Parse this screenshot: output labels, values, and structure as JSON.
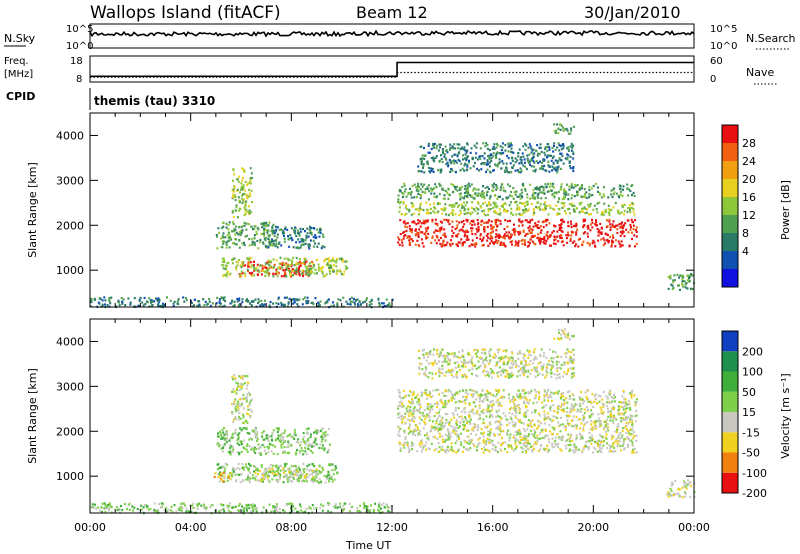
{
  "header": {
    "title": "Wallops Island (fitACF)",
    "beam": "Beam 12",
    "date": "30/Jan/2010"
  },
  "strips": {
    "nsky_label": "N.Sky",
    "nsearch_label": "N.Search",
    "freq_label": "Freq.",
    "freq_unit": "[MHz]",
    "nave_label": "Nave",
    "cpid_label": "CPID",
    "cpid_value": "themis (tau) 3310",
    "noise_ticks_left": [
      "10^5",
      "10^0"
    ],
    "noise_ticks_right": [
      "10^5",
      "10^0"
    ],
    "freq_ticks": [
      "18",
      "8"
    ],
    "nave_ticks": [
      "60",
      "0"
    ],
    "freq_series": {
      "x_hours": [
        0,
        12.2,
        12.2,
        24
      ],
      "mhz": [
        10.2,
        10.2,
        15.5,
        15.5
      ]
    },
    "nave_series": {
      "x_hours": [
        0,
        12.2,
        12.2,
        24
      ],
      "count": [
        11,
        11,
        22,
        22
      ]
    }
  },
  "chart_data": [
    {
      "type": "heatmap",
      "panel": "power",
      "ylabel": "Slant Range [km]",
      "xlabel": "Time UT",
      "xlim_hours": [
        0,
        24
      ],
      "ylim_km": [
        180,
        4500
      ],
      "yticks": [
        "1000",
        "2000",
        "3000",
        "4000"
      ],
      "xticks": [
        "00:00",
        "04:00",
        "08:00",
        "12:00",
        "16:00",
        "20:00",
        "00:00"
      ],
      "colorbar": {
        "label": "Power [dB]",
        "ticks": [
          "4",
          "8",
          "12",
          "16",
          "20",
          "24",
          "28"
        ],
        "colors": [
          "#1010e0",
          "#1050b0",
          "#2a7a68",
          "#4fa050",
          "#8ec83a",
          "#e8d020",
          "#f0a010",
          "#f06010",
          "#e81010"
        ]
      },
      "regions": [
        {
          "t0": 5.9,
          "t1": 8.8,
          "r0": 880,
          "r1": 1220,
          "level": "28"
        },
        {
          "t0": 5.2,
          "t1": 10.2,
          "r0": 880,
          "r1": 1300,
          "level": "12"
        },
        {
          "t0": 5.0,
          "t1": 7.3,
          "r0": 1500,
          "r1": 2100,
          "level": "8"
        },
        {
          "t0": 7.0,
          "t1": 9.3,
          "r0": 1500,
          "r1": 2000,
          "level": "4"
        },
        {
          "t0": 5.6,
          "t1": 6.4,
          "r0": 2200,
          "r1": 3300,
          "level": "12"
        },
        {
          "t0": 12.2,
          "t1": 21.7,
          "r0": 1550,
          "r1": 2150,
          "level": "28"
        },
        {
          "t0": 12.2,
          "t1": 21.6,
          "r0": 2250,
          "r1": 2550,
          "level": "12"
        },
        {
          "t0": 12.2,
          "t1": 21.6,
          "r0": 2600,
          "r1": 2950,
          "level": "8"
        },
        {
          "t0": 13.0,
          "t1": 19.2,
          "r0": 3200,
          "r1": 3850,
          "level": "4"
        },
        {
          "t0": 18.4,
          "t1": 19.2,
          "r0": 4050,
          "r1": 4300,
          "level": "8"
        },
        {
          "t0": 22.9,
          "t1": 24.0,
          "r0": 550,
          "r1": 950,
          "level": "8"
        },
        {
          "t0": 0.0,
          "t1": 12.0,
          "r0": 200,
          "r1": 420,
          "level": "4"
        }
      ]
    },
    {
      "type": "heatmap",
      "panel": "velocity",
      "ylabel": "Slant Range [km]",
      "xlabel": "Time UT",
      "xlim_hours": [
        0,
        24
      ],
      "ylim_km": [
        180,
        4500
      ],
      "yticks": [
        "1000",
        "2000",
        "3000",
        "4000"
      ],
      "xticks": [
        "00:00",
        "04:00",
        "08:00",
        "12:00",
        "16:00",
        "20:00",
        "00:00"
      ],
      "colorbar": {
        "label": "Velocity [m s⁻¹]",
        "ticks": [
          "200",
          "100",
          "50",
          "15",
          "-15",
          "-50",
          "-100",
          "-200"
        ],
        "colors": [
          "#1040c0",
          "#1f8f50",
          "#3fae3a",
          "#7ed04a",
          "#c8c8c0",
          "#f0d020",
          "#f08010",
          "#e81010"
        ]
      },
      "regions": [
        {
          "t0": 5.0,
          "t1": 9.8,
          "r0": 880,
          "r1": 1300,
          "level": "15"
        },
        {
          "t0": 6.4,
          "t1": 9.0,
          "r0": 900,
          "r1": 1200,
          "level": "-15"
        },
        {
          "t0": 4.9,
          "t1": 5.6,
          "r0": 900,
          "r1": 1100,
          "level": "-50"
        },
        {
          "t0": 5.0,
          "t1": 9.5,
          "r0": 1500,
          "r1": 2100,
          "level": "15"
        },
        {
          "t0": 5.6,
          "t1": 6.4,
          "r0": 2200,
          "r1": 3300,
          "level": "-15"
        },
        {
          "t0": 12.2,
          "t1": 21.7,
          "r0": 1550,
          "r1": 2950,
          "level": "-15"
        },
        {
          "t0": 13.0,
          "t1": 19.2,
          "r0": 3200,
          "r1": 3850,
          "level": "-15"
        },
        {
          "t0": 18.4,
          "t1": 19.2,
          "r0": 4050,
          "r1": 4300,
          "level": "-15"
        },
        {
          "t0": 22.9,
          "t1": 24.0,
          "r0": 550,
          "r1": 950,
          "level": "-15"
        },
        {
          "t0": 0.0,
          "t1": 12.0,
          "r0": 200,
          "r1": 420,
          "level": "15"
        }
      ]
    }
  ]
}
